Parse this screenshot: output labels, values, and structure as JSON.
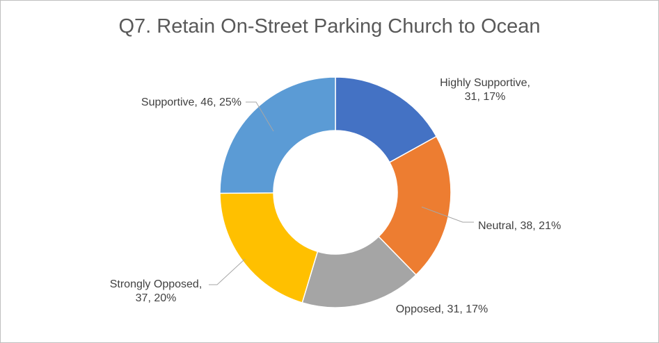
{
  "chart_data": {
    "type": "pie",
    "variant": "donut",
    "title": "Q7. Retain On-Street Parking Church to Ocean",
    "categories": [
      "Highly Supportive",
      "Neutral",
      "Opposed",
      "Strongly Opposed",
      "Supportive"
    ],
    "values": [
      31,
      38,
      31,
      37,
      46
    ],
    "percents": [
      17,
      21,
      17,
      20,
      25
    ],
    "colors": [
      "#4472c4",
      "#ed7d31",
      "#a5a5a5",
      "#ffc000",
      "#5b9bd5"
    ],
    "data_labels": [
      [
        "Highly Supportive,",
        "31, 17%"
      ],
      [
        "Neutral, 38, 21%"
      ],
      [
        "Opposed, 31, 17%"
      ],
      [
        "Strongly Opposed,",
        "37, 20%"
      ],
      [
        "Supportive, 46, 25%"
      ]
    ],
    "legend": "none"
  }
}
